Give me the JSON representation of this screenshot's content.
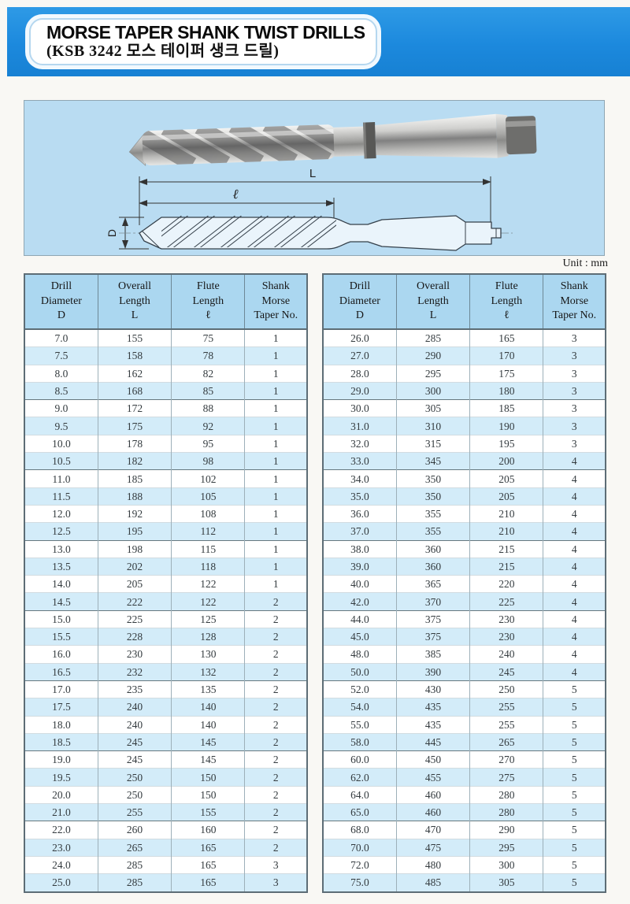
{
  "header": {
    "title": "MORSE TAPER SHANK TWIST DRILLS",
    "subtitle": "(KSB 3242 모스 테이퍼 생크 드릴)"
  },
  "page": {
    "unit_label": "Unit : mm"
  },
  "diagram": {
    "overall_length_label": "L",
    "flute_length_label": "ℓ",
    "diameter_label": "D"
  },
  "table": {
    "columns": [
      "Drill\nDiameter\nD",
      "Overall\nLength\nL",
      "Flute\nLength\nℓ",
      "Shank\nMorse\nTaper No."
    ],
    "left_rows": [
      [
        "7.0",
        "155",
        "75",
        "1"
      ],
      [
        "7.5",
        "158",
        "78",
        "1"
      ],
      [
        "8.0",
        "162",
        "82",
        "1"
      ],
      [
        "8.5",
        "168",
        "85",
        "1"
      ],
      [
        "9.0",
        "172",
        "88",
        "1"
      ],
      [
        "9.5",
        "175",
        "92",
        "1"
      ],
      [
        "10.0",
        "178",
        "95",
        "1"
      ],
      [
        "10.5",
        "182",
        "98",
        "1"
      ],
      [
        "11.0",
        "185",
        "102",
        "1"
      ],
      [
        "11.5",
        "188",
        "105",
        "1"
      ],
      [
        "12.0",
        "192",
        "108",
        "1"
      ],
      [
        "12.5",
        "195",
        "112",
        "1"
      ],
      [
        "13.0",
        "198",
        "115",
        "1"
      ],
      [
        "13.5",
        "202",
        "118",
        "1"
      ],
      [
        "14.0",
        "205",
        "122",
        "1"
      ],
      [
        "14.5",
        "222",
        "122",
        "2"
      ],
      [
        "15.0",
        "225",
        "125",
        "2"
      ],
      [
        "15.5",
        "228",
        "128",
        "2"
      ],
      [
        "16.0",
        "230",
        "130",
        "2"
      ],
      [
        "16.5",
        "232",
        "132",
        "2"
      ],
      [
        "17.0",
        "235",
        "135",
        "2"
      ],
      [
        "17.5",
        "240",
        "140",
        "2"
      ],
      [
        "18.0",
        "240",
        "140",
        "2"
      ],
      [
        "18.5",
        "245",
        "145",
        "2"
      ],
      [
        "19.0",
        "245",
        "145",
        "2"
      ],
      [
        "19.5",
        "250",
        "150",
        "2"
      ],
      [
        "20.0",
        "250",
        "150",
        "2"
      ],
      [
        "21.0",
        "255",
        "155",
        "2"
      ],
      [
        "22.0",
        "260",
        "160",
        "2"
      ],
      [
        "23.0",
        "265",
        "165",
        "2"
      ],
      [
        "24.0",
        "285",
        "165",
        "3"
      ],
      [
        "25.0",
        "285",
        "165",
        "3"
      ]
    ],
    "right_rows": [
      [
        "26.0",
        "285",
        "165",
        "3"
      ],
      [
        "27.0",
        "290",
        "170",
        "3"
      ],
      [
        "28.0",
        "295",
        "175",
        "3"
      ],
      [
        "29.0",
        "300",
        "180",
        "3"
      ],
      [
        "30.0",
        "305",
        "185",
        "3"
      ],
      [
        "31.0",
        "310",
        "190",
        "3"
      ],
      [
        "32.0",
        "315",
        "195",
        "3"
      ],
      [
        "33.0",
        "345",
        "200",
        "4"
      ],
      [
        "34.0",
        "350",
        "205",
        "4"
      ],
      [
        "35.0",
        "350",
        "205",
        "4"
      ],
      [
        "36.0",
        "355",
        "210",
        "4"
      ],
      [
        "37.0",
        "355",
        "210",
        "4"
      ],
      [
        "38.0",
        "360",
        "215",
        "4"
      ],
      [
        "39.0",
        "360",
        "215",
        "4"
      ],
      [
        "40.0",
        "365",
        "220",
        "4"
      ],
      [
        "42.0",
        "370",
        "225",
        "4"
      ],
      [
        "44.0",
        "375",
        "230",
        "4"
      ],
      [
        "45.0",
        "375",
        "230",
        "4"
      ],
      [
        "48.0",
        "385",
        "240",
        "4"
      ],
      [
        "50.0",
        "390",
        "245",
        "4"
      ],
      [
        "52.0",
        "430",
        "250",
        "5"
      ],
      [
        "54.0",
        "435",
        "255",
        "5"
      ],
      [
        "55.0",
        "435",
        "255",
        "5"
      ],
      [
        "58.0",
        "445",
        "265",
        "5"
      ],
      [
        "60.0",
        "450",
        "270",
        "5"
      ],
      [
        "62.0",
        "455",
        "275",
        "5"
      ],
      [
        "64.0",
        "460",
        "280",
        "5"
      ],
      [
        "65.0",
        "460",
        "280",
        "5"
      ],
      [
        "68.0",
        "470",
        "290",
        "5"
      ],
      [
        "70.0",
        "475",
        "295",
        "5"
      ],
      [
        "72.0",
        "480",
        "300",
        "5"
      ],
      [
        "75.0",
        "485",
        "305",
        "5"
      ]
    ]
  },
  "colors": {
    "banner_blue": "#1c89dd",
    "panel_blue": "#b9dcf2",
    "header_cell_blue": "#abd7f0",
    "alt_row_blue": "#d3ecf9"
  }
}
